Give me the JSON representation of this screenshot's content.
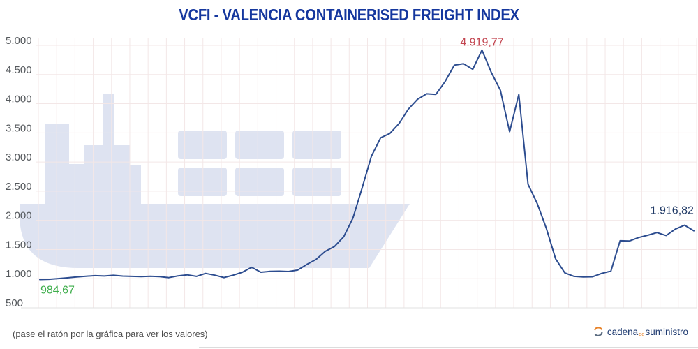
{
  "title": "VCFI - VALENCIA CONTAINERISED FREIGHT INDEX",
  "footer": {
    "hint": "(pase el ratón por la gráfica para ver los valores)",
    "brand": {
      "part1": "cadena",
      "part2": "de",
      "part3": "suministro"
    }
  },
  "colors": {
    "title": "#15379e",
    "line": "#2c4c8f",
    "watermark": "#dee3f1",
    "grid": "#f3e7e7",
    "axis": "#e2e2e2",
    "tick_label": "#54585c",
    "hint_text": "#4a4a4a",
    "brand_navy": "#1e3a70",
    "brand_orange": "#e8832a"
  },
  "chart_data": {
    "type": "line",
    "title": "VCFI - VALENCIA CONTAINERISED FREIGHT INDEX",
    "legend": "none",
    "grid": true,
    "ylim": [
      500,
      5000
    ],
    "y_ticks": [
      {
        "label": "5.000",
        "value": 5000
      },
      {
        "label": "4.500",
        "value": 4500
      },
      {
        "label": "4.000",
        "value": 4000
      },
      {
        "label": "3.500",
        "value": 3500
      },
      {
        "label": "3.000",
        "value": 3000
      },
      {
        "label": "2.500",
        "value": 2500
      },
      {
        "label": "2.000",
        "value": 2000
      },
      {
        "label": "1.500",
        "value": 1500
      },
      {
        "label": "1.000",
        "value": 1000
      },
      {
        "label": "500",
        "value": 500
      }
    ],
    "x_tick_labels": [],
    "values": [
      984.67,
      990,
      1002,
      1015,
      1030,
      1042,
      1052,
      1046,
      1058,
      1044,
      1040,
      1036,
      1042,
      1035,
      1018,
      1048,
      1066,
      1040,
      1090,
      1060,
      1020,
      1060,
      1110,
      1195,
      1110,
      1125,
      1128,
      1122,
      1148,
      1245,
      1330,
      1470,
      1552,
      1720,
      2040,
      2560,
      3100,
      3415,
      3490,
      3660,
      3905,
      4075,
      4170,
      4160,
      4380,
      4660,
      4685,
      4590,
      4919.77,
      4540,
      4230,
      3520,
      4160,
      2620,
      2290,
      1860,
      1340,
      1100,
      1040,
      1030,
      1032,
      1090,
      1130,
      1650,
      1645,
      1705,
      1745,
      1790,
      1740,
      1850,
      1916.82,
      1820
    ],
    "annotations": [
      {
        "label": "984,67",
        "value": 984.67,
        "index": 0,
        "position": "start",
        "color": "#3fae4c"
      },
      {
        "label": "4.919,77",
        "value": 4919.77,
        "index": 48,
        "position": "max",
        "color": "#c2434e"
      },
      {
        "label": "1.916,82",
        "value": 1916.82,
        "index": 70,
        "position": "end",
        "color": "#203a66"
      }
    ]
  }
}
